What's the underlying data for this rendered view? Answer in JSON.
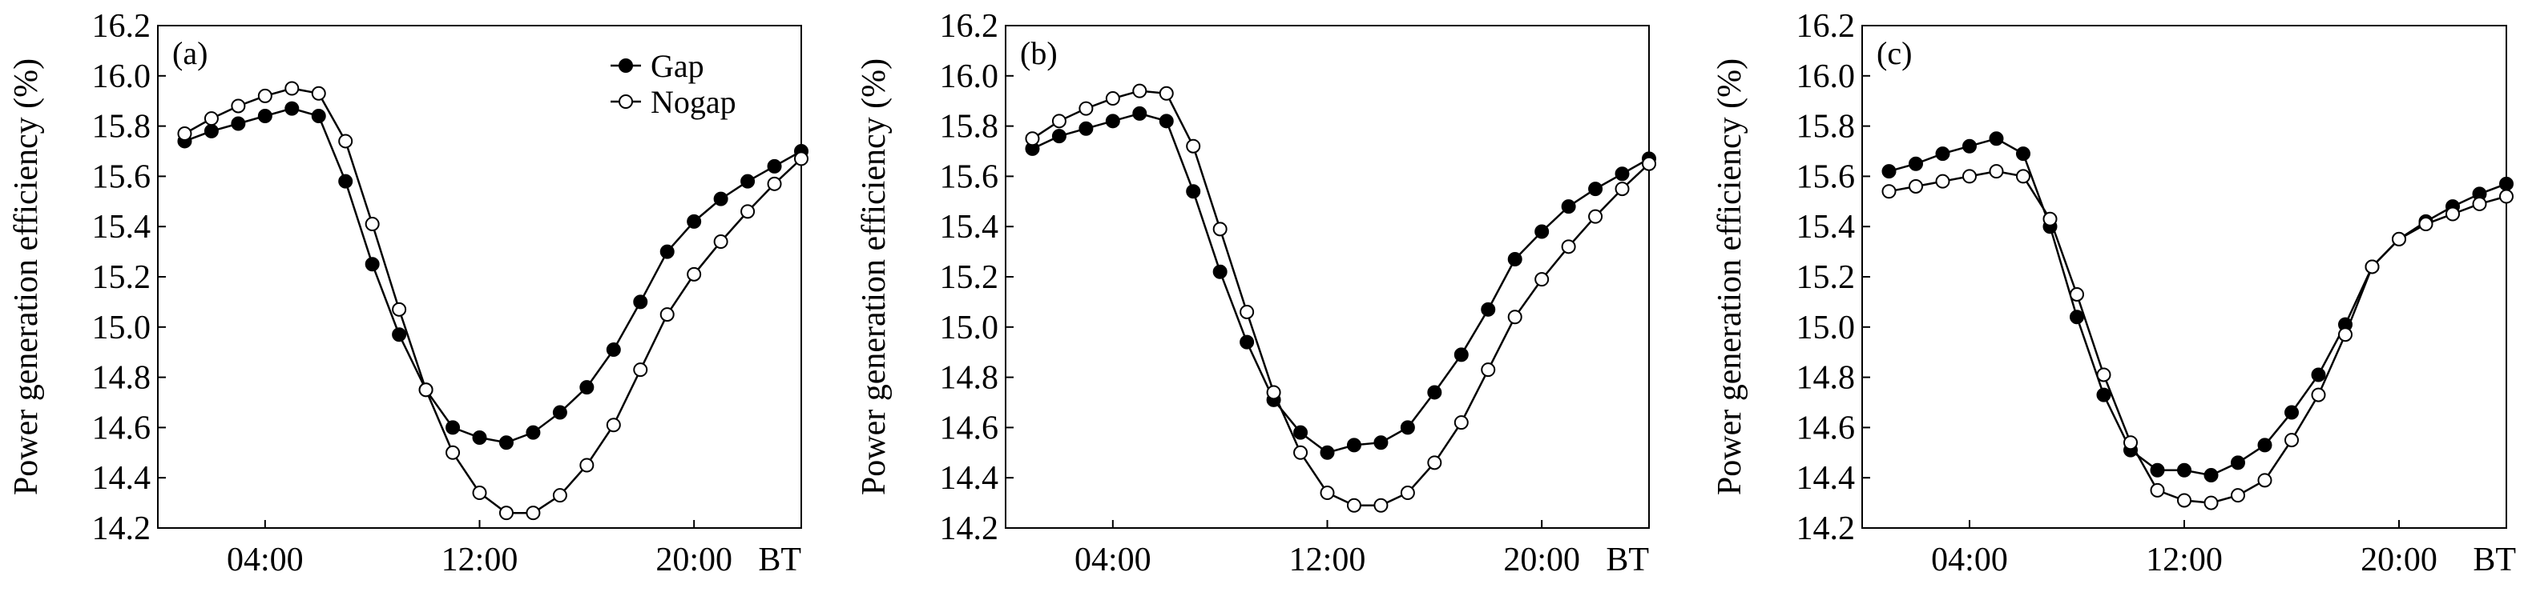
{
  "chart_data": [
    {
      "type": "line",
      "panel_label": "(a)",
      "ylabel": "Power generation efficiency (%)",
      "ylim": [
        14.2,
        16.2
      ],
      "yticks": [
        "14.2",
        "14.4",
        "14.6",
        "14.8",
        "15.0",
        "15.2",
        "15.4",
        "15.6",
        "15.8",
        "16.0",
        "16.2"
      ],
      "xlim": [
        0,
        24
      ],
      "xticks": [
        {
          "x": 4,
          "label": "04:00"
        },
        {
          "x": 12,
          "label": "12:00"
        },
        {
          "x": 20,
          "label": "20:00"
        }
      ],
      "x_unit": "BT",
      "legend_position": "top-right",
      "x": [
        1,
        2,
        3,
        4,
        5,
        6,
        7,
        8,
        9,
        10,
        11,
        12,
        13,
        14,
        15,
        16,
        17,
        18,
        19,
        20,
        21,
        22,
        23,
        24
      ],
      "series": [
        {
          "name": "Gap",
          "marker": "filled-circle",
          "values": [
            15.74,
            15.78,
            15.81,
            15.84,
            15.87,
            15.84,
            15.58,
            15.25,
            14.97,
            14.75,
            14.6,
            14.56,
            14.54,
            14.58,
            14.66,
            14.76,
            14.91,
            15.1,
            15.3,
            15.42,
            15.51,
            15.58,
            15.64,
            15.7
          ]
        },
        {
          "name": "Nogap",
          "marker": "open-circle",
          "values": [
            15.77,
            15.83,
            15.88,
            15.92,
            15.95,
            15.93,
            15.74,
            15.41,
            15.07,
            14.75,
            14.5,
            14.34,
            14.26,
            14.26,
            14.33,
            14.45,
            14.61,
            14.83,
            15.05,
            15.21,
            15.34,
            15.46,
            15.57,
            15.67
          ]
        }
      ]
    },
    {
      "type": "line",
      "panel_label": "(b)",
      "ylabel": "Power generation efficiency (%)",
      "ylim": [
        14.2,
        16.2
      ],
      "yticks": [
        "14.2",
        "14.4",
        "14.6",
        "14.8",
        "15.0",
        "15.2",
        "15.4",
        "15.6",
        "15.8",
        "16.0",
        "16.2"
      ],
      "xlim": [
        0,
        24
      ],
      "xticks": [
        {
          "x": 4,
          "label": "04:00"
        },
        {
          "x": 12,
          "label": "12:00"
        },
        {
          "x": 20,
          "label": "20:00"
        }
      ],
      "x_unit": "BT",
      "x": [
        1,
        2,
        3,
        4,
        5,
        6,
        7,
        8,
        9,
        10,
        11,
        12,
        13,
        14,
        15,
        16,
        17,
        18,
        19,
        20,
        21,
        22,
        23,
        24
      ],
      "series": [
        {
          "values": [
            15.71,
            15.76,
            15.79,
            15.82,
            15.85,
            15.82,
            15.54,
            15.22,
            14.94,
            14.71,
            14.58,
            14.5,
            14.53,
            14.54,
            14.6,
            14.74,
            14.89,
            15.07,
            15.27,
            15.38,
            15.48,
            15.55,
            15.61,
            15.67
          ]
        },
        {
          "values": [
            15.75,
            15.82,
            15.87,
            15.91,
            15.94,
            15.93,
            15.72,
            15.39,
            15.06,
            14.74,
            14.5,
            14.34,
            14.29,
            14.29,
            14.34,
            14.46,
            14.62,
            14.83,
            15.04,
            15.19,
            15.32,
            15.44,
            15.55,
            15.65
          ]
        }
      ]
    },
    {
      "type": "line",
      "panel_label": "(c)",
      "ylabel": "Power generation efficiency (%)",
      "ylim": [
        14.2,
        16.2
      ],
      "yticks": [
        "14.2",
        "14.4",
        "14.6",
        "14.8",
        "15.0",
        "15.2",
        "15.4",
        "15.6",
        "15.8",
        "16.0",
        "16.2"
      ],
      "xlim": [
        0,
        24
      ],
      "xticks": [
        {
          "x": 4,
          "label": "04:00"
        },
        {
          "x": 12,
          "label": "12:00"
        },
        {
          "x": 20,
          "label": "20:00"
        }
      ],
      "x_unit": "BT",
      "x": [
        1,
        2,
        3,
        4,
        5,
        6,
        7,
        8,
        9,
        10,
        11,
        12,
        13,
        14,
        15,
        16,
        17,
        18,
        19,
        20,
        21,
        22,
        23,
        24
      ],
      "series": [
        {
          "values": [
            15.62,
            15.65,
            15.69,
            15.72,
            15.75,
            15.69,
            15.4,
            15.04,
            14.73,
            14.51,
            14.43,
            14.43,
            14.41,
            14.46,
            14.53,
            14.66,
            14.81,
            15.01,
            15.24,
            15.35,
            15.42,
            15.48,
            15.53,
            15.57
          ]
        },
        {
          "values": [
            15.54,
            15.56,
            15.58,
            15.6,
            15.62,
            15.6,
            15.43,
            15.13,
            14.81,
            14.54,
            14.35,
            14.31,
            14.3,
            14.33,
            14.39,
            14.55,
            14.73,
            14.97,
            15.24,
            15.35,
            15.41,
            15.45,
            15.49,
            15.52
          ]
        }
      ]
    }
  ]
}
